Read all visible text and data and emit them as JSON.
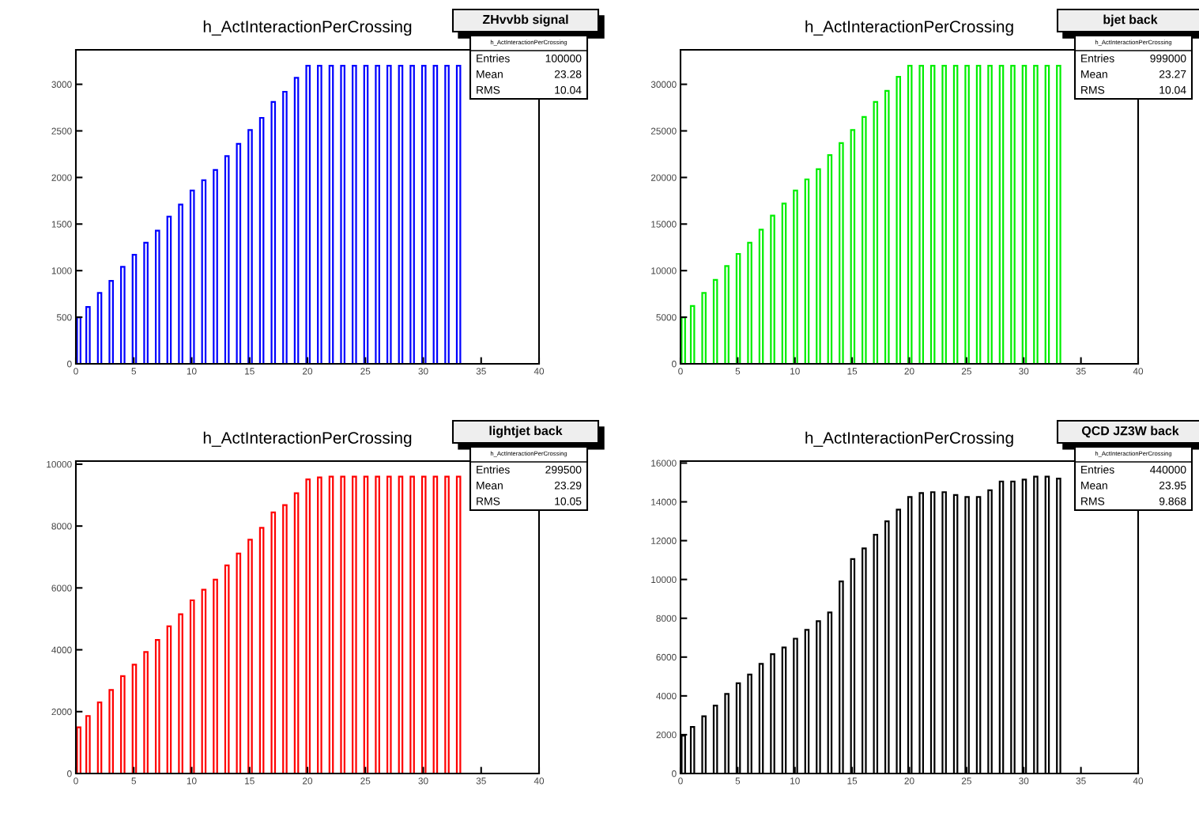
{
  "chart_data": [
    {
      "type": "bar",
      "title": "h_ActInteractionPerCrossing",
      "x": [
        0.25,
        1.05,
        2.05,
        3.05,
        4.05,
        5.05,
        6.05,
        7.05,
        8.05,
        9.05,
        10.05,
        11.05,
        12.05,
        13.05,
        14.05,
        15.05,
        16.05,
        17.05,
        18.05,
        19.05,
        20.05,
        21.05,
        22.05,
        23.05,
        24.05,
        25.05,
        26.05,
        27.05,
        28.05,
        29.05,
        30.05,
        31.05,
        32.05,
        33.05
      ],
      "series": [
        {
          "color": "#0000ff",
          "values": [
            500,
            610,
            760,
            890,
            1040,
            1170,
            1300,
            1430,
            1580,
            1710,
            1860,
            1970,
            2080,
            2230,
            2360,
            2510,
            2640,
            2810,
            2920,
            3070,
            3200,
            3200,
            3200,
            3200,
            3200,
            3200,
            3200,
            3200,
            3200,
            3200,
            3200,
            3200,
            3200,
            3200
          ]
        }
      ],
      "xlim": [
        0,
        40
      ],
      "xticks": [
        0,
        5,
        10,
        15,
        20,
        25,
        30,
        35,
        40
      ],
      "ylim": [
        0,
        3370
      ],
      "yticks": [
        0,
        500,
        1000,
        1500,
        2000,
        2500,
        3000
      ],
      "annotations": [
        "ZHvvbb signal",
        "h_ActInteractionPerCrossing",
        "Entries",
        "100000",
        "Mean",
        "23.28",
        "RMS",
        "10.04"
      ]
    },
    {
      "type": "bar",
      "title": "h_ActInteractionPerCrossing",
      "x": [
        0.25,
        1.05,
        2.05,
        3.05,
        4.05,
        5.05,
        6.05,
        7.05,
        8.05,
        9.05,
        10.05,
        11.05,
        12.05,
        13.05,
        14.05,
        15.05,
        16.05,
        17.05,
        18.05,
        19.05,
        20.05,
        21.05,
        22.05,
        23.05,
        24.05,
        25.05,
        26.05,
        27.05,
        28.05,
        29.05,
        30.05,
        31.05,
        32.05,
        33.05
      ],
      "series": [
        {
          "color": "#00ee00",
          "values": [
            5000,
            6200,
            7600,
            9000,
            10500,
            11800,
            13000,
            14400,
            15900,
            17200,
            18600,
            19800,
            20900,
            22400,
            23700,
            25100,
            26500,
            28100,
            29300,
            30800,
            32000,
            32000,
            32000,
            32000,
            32000,
            32000,
            32000,
            32000,
            32000,
            32000,
            32000,
            32000,
            32000,
            32000
          ]
        }
      ],
      "xlim": [
        0,
        40
      ],
      "xticks": [
        0,
        5,
        10,
        15,
        20,
        25,
        30,
        35,
        40
      ],
      "ylim": [
        0,
        33700
      ],
      "yticks": [
        0,
        5000,
        10000,
        15000,
        20000,
        25000,
        30000
      ],
      "annotations": [
        "bjet back",
        "h_ActInteractionPerCrossing",
        "Entries",
        "999000",
        "Mean",
        "23.27",
        "RMS",
        "10.04"
      ]
    },
    {
      "type": "bar",
      "title": "h_ActInteractionPerCrossing",
      "x": [
        0.25,
        1.05,
        2.05,
        3.05,
        4.05,
        5.05,
        6.05,
        7.05,
        8.05,
        9.05,
        10.05,
        11.05,
        12.05,
        13.05,
        14.05,
        15.05,
        16.05,
        17.05,
        18.05,
        19.05,
        20.05,
        21.05,
        22.05,
        23.05,
        24.05,
        25.05,
        26.05,
        27.05,
        28.05,
        29.05,
        30.05,
        31.05,
        32.05,
        33.05
      ],
      "series": [
        {
          "color": "#ff0000",
          "values": [
            1490,
            1860,
            2300,
            2700,
            3150,
            3520,
            3930,
            4320,
            4760,
            5150,
            5600,
            5940,
            6270,
            6730,
            7110,
            7560,
            7940,
            8440,
            8680,
            9060,
            9510,
            9570,
            9600,
            9600,
            9600,
            9600,
            9600,
            9600,
            9600,
            9600,
            9600,
            9600,
            9600,
            9600
          ]
        }
      ],
      "xlim": [
        0,
        40
      ],
      "xticks": [
        0,
        5,
        10,
        15,
        20,
        25,
        30,
        35,
        40
      ],
      "ylim": [
        0,
        10100
      ],
      "yticks": [
        0,
        2000,
        4000,
        6000,
        8000,
        10000
      ],
      "annotations": [
        "lightjet back",
        "h_ActInteractionPerCrossing",
        "Entries",
        "299500",
        "Mean",
        "23.29",
        "RMS",
        "10.05"
      ]
    },
    {
      "type": "bar",
      "title": "h_ActInteractionPerCrossing",
      "x": [
        0.25,
        1.05,
        2.05,
        3.05,
        4.05,
        5.05,
        6.05,
        7.05,
        8.05,
        9.05,
        10.05,
        11.05,
        12.05,
        13.05,
        14.05,
        15.05,
        16.05,
        17.05,
        18.05,
        19.05,
        20.05,
        21.05,
        22.05,
        23.05,
        24.05,
        25.05,
        26.05,
        27.05,
        28.05,
        29.05,
        30.05,
        31.05,
        32.05,
        33.05
      ],
      "series": [
        {
          "color": "#000000",
          "values": [
            1950,
            2400,
            2950,
            3500,
            4100,
            4650,
            5100,
            5650,
            6150,
            6500,
            6950,
            7400,
            7850,
            8300,
            9900,
            11050,
            11600,
            12300,
            13000,
            13600,
            14250,
            14450,
            14500,
            14500,
            14350,
            14250,
            14250,
            14600,
            15050,
            15050,
            15150,
            15300,
            15300,
            15200
          ]
        }
      ],
      "xlim": [
        0,
        40
      ],
      "xticks": [
        0,
        5,
        10,
        15,
        20,
        25,
        30,
        35,
        40
      ],
      "ylim": [
        0,
        16100
      ],
      "yticks": [
        0,
        2000,
        4000,
        6000,
        8000,
        10000,
        12000,
        14000,
        16000
      ],
      "annotations": [
        "QCD JZ3W back",
        "h_ActInteractionPerCrossing",
        "Entries",
        "440000",
        "Mean",
        "23.95",
        "RMS",
        "9.868"
      ]
    }
  ]
}
